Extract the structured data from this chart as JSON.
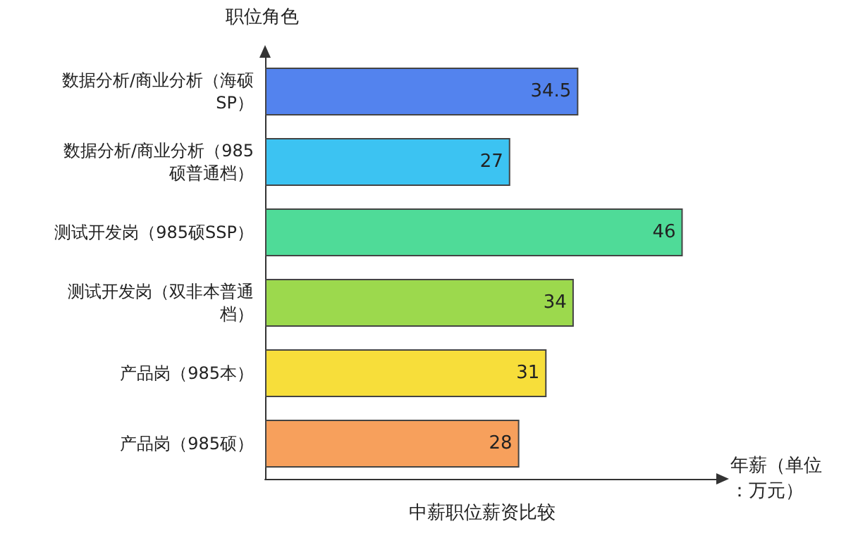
{
  "chart_data": {
    "type": "bar",
    "orientation": "horizontal",
    "title": "中薪职位薪资比较",
    "xlabel": "年薪（单位：万元）",
    "ylabel": "职位角色",
    "categories": [
      "数据分析/商业分析（海硕SP）",
      "数据分析/商业分析（985硕普通档）",
      "测试开发岗（985硕SSP）",
      "测试开发岗（双非本普通档）",
      "产品岗（985本）",
      "产品岗（985硕）"
    ],
    "values": [
      34.5,
      27,
      46,
      34,
      31,
      28
    ],
    "colors": [
      "#5383ee",
      "#3cc3f2",
      "#4fdb98",
      "#9cd94d",
      "#f7de3a",
      "#f7a05c"
    ],
    "data_labels": true,
    "tick_labels": "y"
  }
}
